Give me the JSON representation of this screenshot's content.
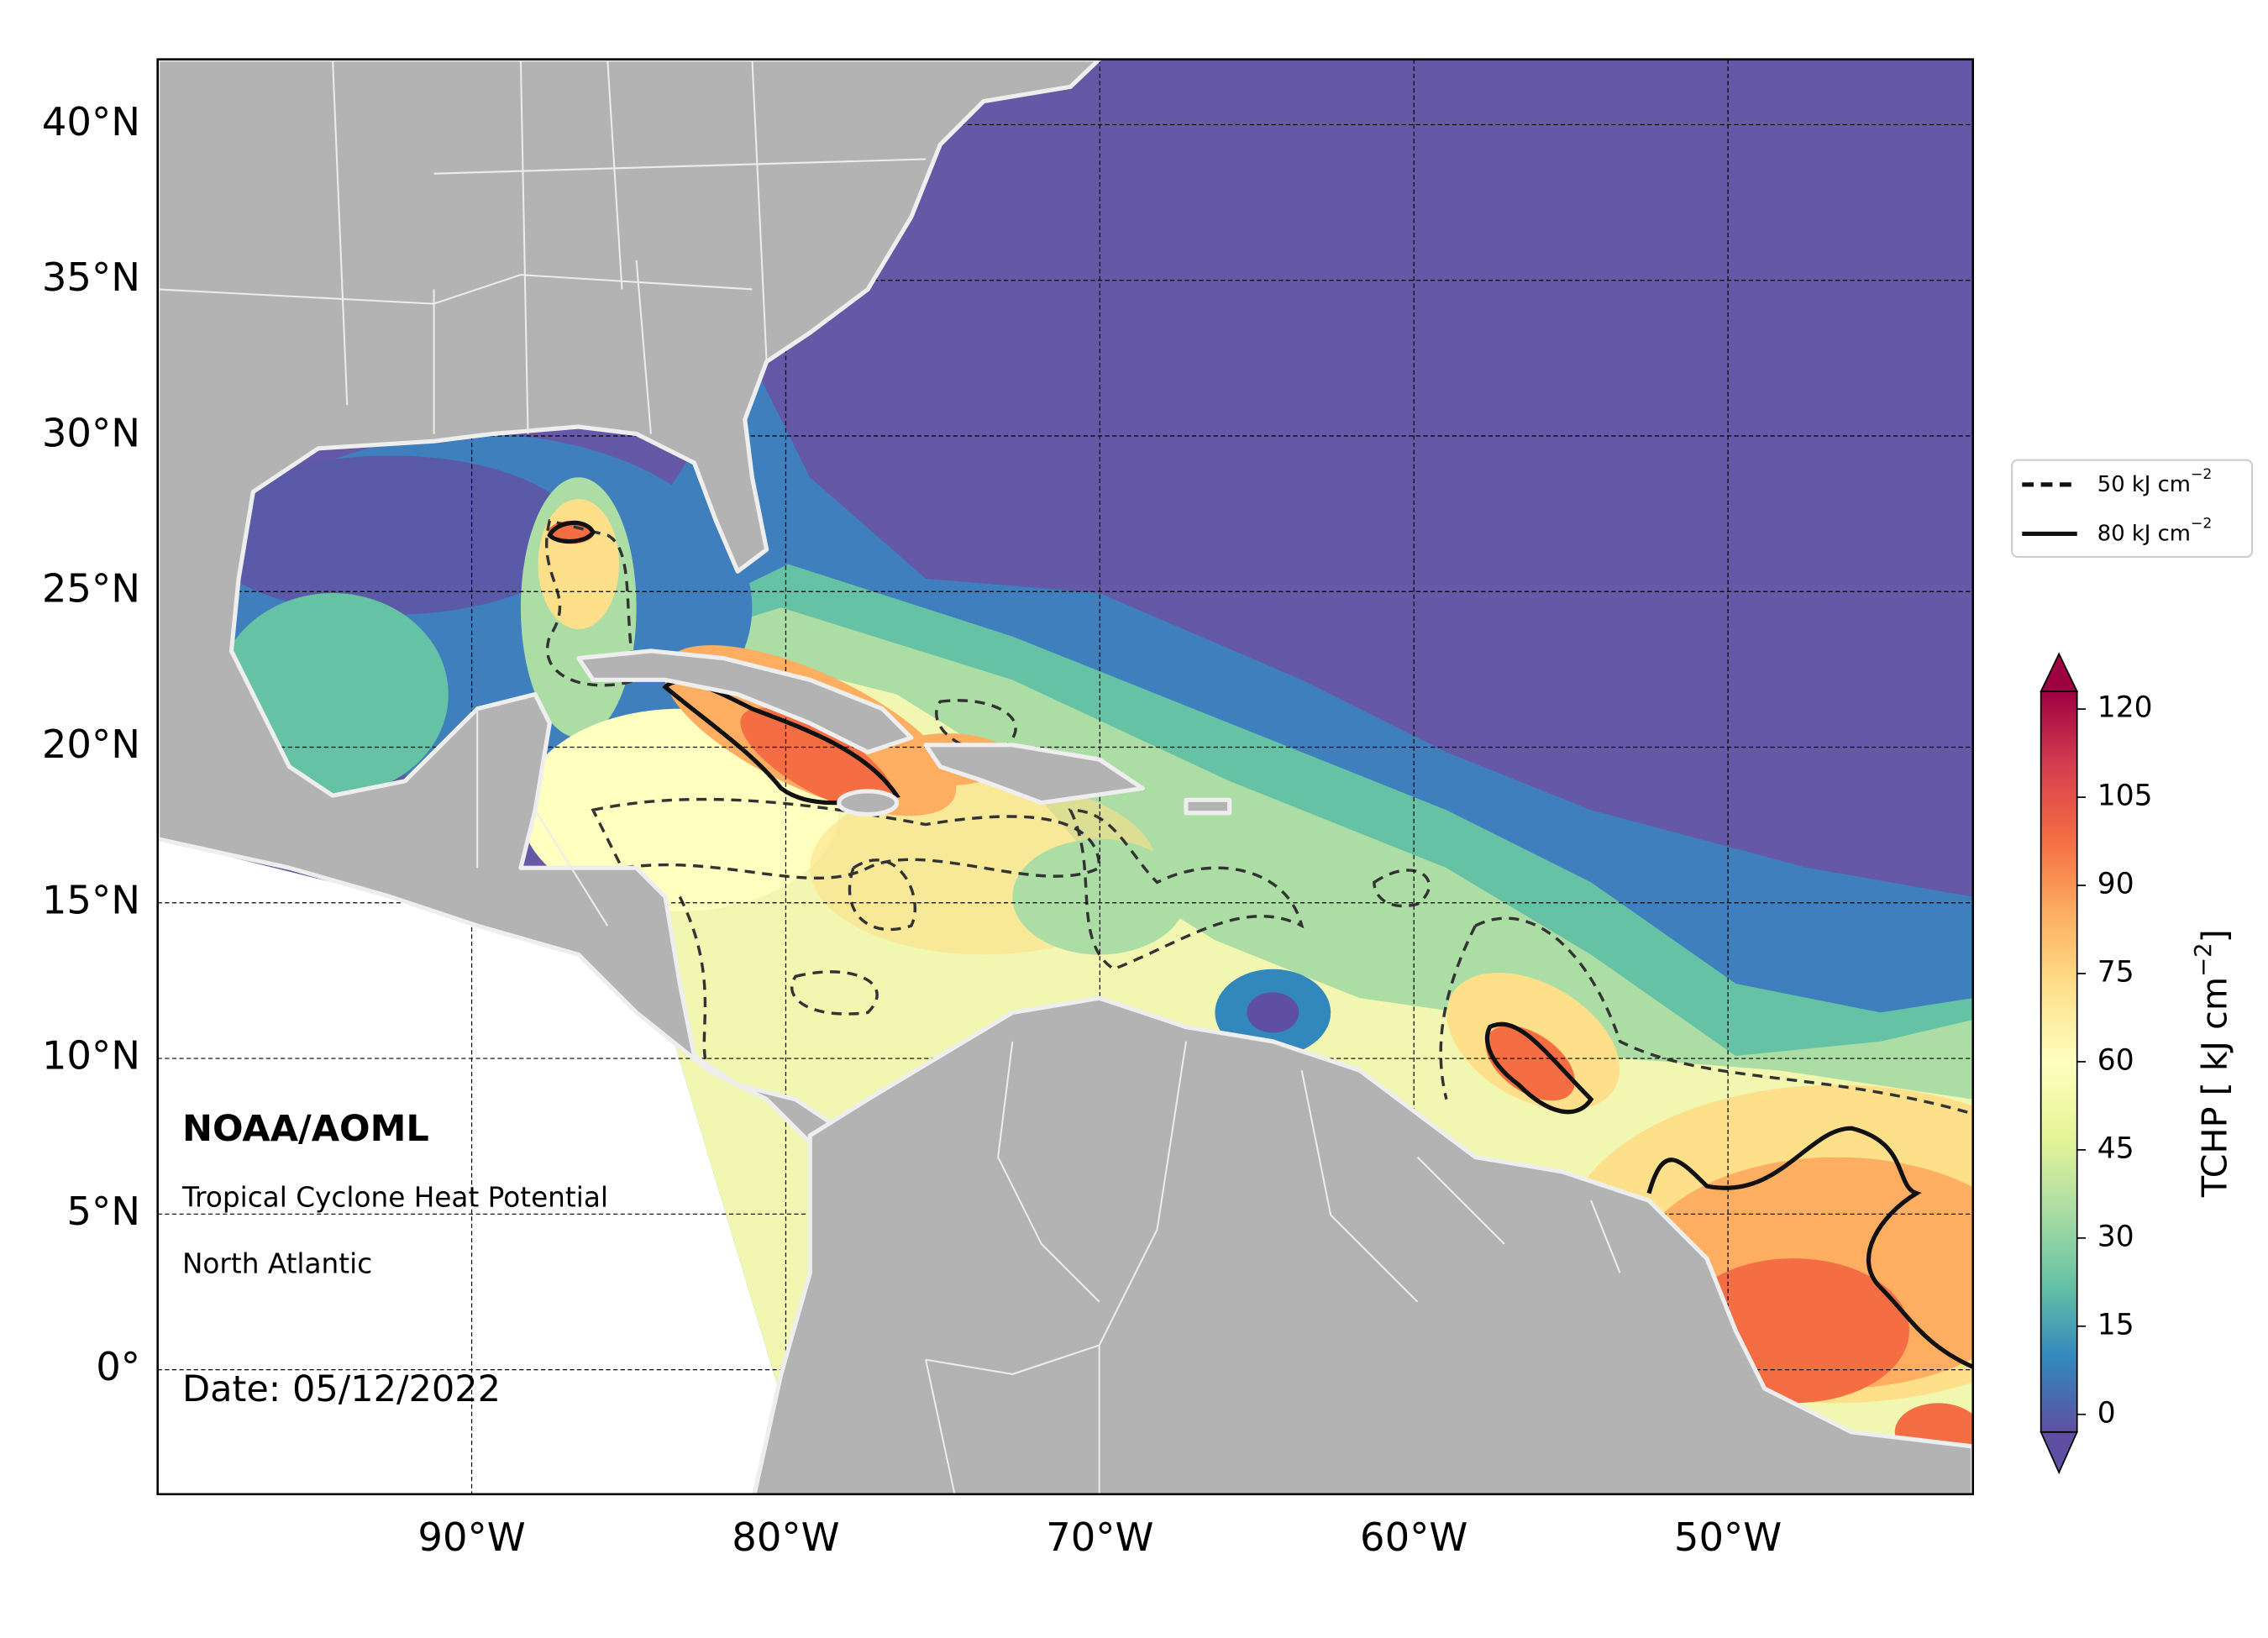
{
  "map": {
    "lon_range": [
      -100,
      -42.2
    ],
    "lat_range": [
      -4,
      42.1
    ],
    "grid": true,
    "lat_ticks": [
      {
        "value": 0,
        "label": "0°"
      },
      {
        "value": 5,
        "label": "5°N"
      },
      {
        "value": 10,
        "label": "10°N"
      },
      {
        "value": 15,
        "label": "15°N"
      },
      {
        "value": 20,
        "label": "20°N"
      },
      {
        "value": 25,
        "label": "25°N"
      },
      {
        "value": 30,
        "label": "30°N"
      },
      {
        "value": 35,
        "label": "35°N"
      },
      {
        "value": 40,
        "label": "40°N"
      }
    ],
    "lon_ticks": [
      {
        "value": -90,
        "label": "90°W"
      },
      {
        "value": -80,
        "label": "80°W"
      },
      {
        "value": -70,
        "label": "70°W"
      },
      {
        "value": -60,
        "label": "60°W"
      },
      {
        "value": -50,
        "label": "50°W"
      }
    ]
  },
  "annotations": {
    "org": "NOAA/AOML",
    "product": "Tropical Cyclone Heat Potential",
    "region": "North Atlantic",
    "date": "Date: 05/12/2022"
  },
  "legend": {
    "entries": [
      {
        "label": "50 kJ cm",
        "exponent": "−2",
        "style": "dashed"
      },
      {
        "label": "80 kJ cm",
        "exponent": "−2",
        "style": "solid"
      }
    ]
  },
  "colorbar": {
    "label": "TCHP [ kJ cm",
    "label_exponent": "−2",
    "label_end": "]",
    "lim": [
      -3,
      123
    ],
    "ticks": [
      0,
      15,
      30,
      45,
      60,
      75,
      90,
      105,
      120
    ],
    "colors": [
      "#5e4fa2",
      "#3288bd",
      "#66c2a5",
      "#abdda4",
      "#e6f598",
      "#ffffbf",
      "#fee08b",
      "#fdae61",
      "#f46d43",
      "#d53e4f",
      "#9e0142"
    ]
  }
}
